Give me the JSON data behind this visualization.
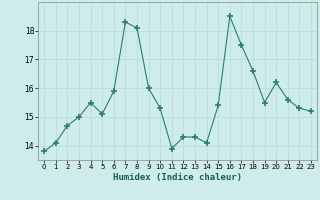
{
  "x": [
    0,
    1,
    2,
    3,
    4,
    5,
    6,
    7,
    8,
    9,
    10,
    11,
    12,
    13,
    14,
    15,
    16,
    17,
    18,
    19,
    20,
    21,
    22,
    23
  ],
  "y": [
    13.8,
    14.1,
    14.7,
    15.0,
    15.5,
    15.1,
    15.9,
    18.3,
    18.1,
    16.0,
    15.3,
    13.9,
    14.3,
    14.3,
    14.1,
    15.4,
    18.5,
    17.5,
    16.6,
    15.5,
    16.2,
    15.6,
    15.3,
    15.2
  ],
  "xlabel": "Humidex (Indice chaleur)",
  "line_color": "#2d7d6e",
  "marker_color": "#2d7d6e",
  "bg_color": "#ceecea",
  "grid_color": "#b8dbd8",
  "xlim": [
    -0.5,
    23.5
  ],
  "ylim": [
    13.5,
    19.0
  ],
  "yticks": [
    14,
    15,
    16,
    17,
    18
  ],
  "xticks": [
    0,
    1,
    2,
    3,
    4,
    5,
    6,
    7,
    8,
    9,
    10,
    11,
    12,
    13,
    14,
    15,
    16,
    17,
    18,
    19,
    20,
    21,
    22,
    23
  ]
}
